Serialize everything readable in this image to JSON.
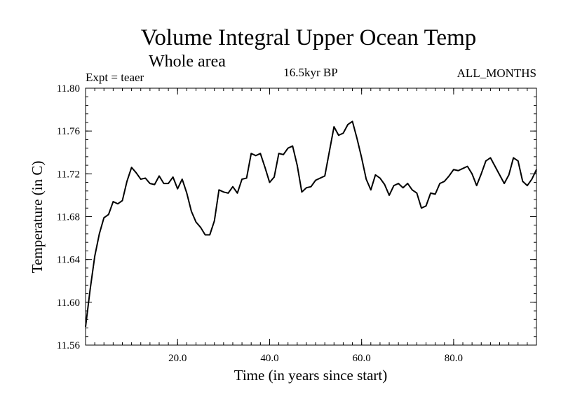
{
  "chart_data": {
    "type": "line",
    "title": "Volume Integral Upper Ocean Temp",
    "subtitle": "Whole area",
    "header_left": "Expt = teaer",
    "header_center": "16.5kyr BP",
    "header_right": "ALL_MONTHS",
    "xlabel": "Time (in years since start)",
    "ylabel": "Temperature (in C)",
    "xlim": [
      0,
      98
    ],
    "ylim": [
      11.56,
      11.8
    ],
    "xticks": [
      20,
      40,
      60,
      80
    ],
    "xtick_labels": [
      "20.0",
      "40.0",
      "60.0",
      "80.0"
    ],
    "yticks": [
      11.56,
      11.6,
      11.64,
      11.68,
      11.72,
      11.76,
      11.8
    ],
    "ytick_labels": [
      "11.56",
      "11.60",
      "11.64",
      "11.68",
      "11.72",
      "11.76",
      "11.80"
    ],
    "x_minor_step": 2,
    "y_minor_step": 0.008,
    "series": [
      {
        "name": "Temperature",
        "x": [
          0,
          1,
          2,
          3,
          4,
          5,
          6,
          7,
          8,
          9,
          10,
          11,
          12,
          13,
          14,
          15,
          16,
          17,
          18,
          19,
          20,
          21,
          22,
          23,
          24,
          25,
          26,
          27,
          28,
          29,
          30,
          31,
          32,
          33,
          34,
          35,
          36,
          37,
          38,
          39,
          40,
          41,
          42,
          43,
          44,
          45,
          46,
          47,
          48,
          49,
          50,
          51,
          52,
          53,
          54,
          55,
          56,
          57,
          58,
          59,
          60,
          61,
          62,
          63,
          64,
          65,
          66,
          67,
          68,
          69,
          70,
          71,
          72,
          73,
          74,
          75,
          76,
          77,
          78,
          79,
          80,
          81,
          82,
          83,
          84,
          85,
          86,
          87,
          88,
          89,
          90,
          91,
          92,
          93,
          94,
          95,
          96,
          97,
          98
        ],
        "values": [
          11.577,
          11.612,
          11.643,
          11.664,
          11.679,
          11.682,
          11.694,
          11.692,
          11.695,
          11.713,
          11.726,
          11.721,
          11.715,
          11.716,
          11.711,
          11.71,
          11.718,
          11.711,
          11.711,
          11.717,
          11.706,
          11.715,
          11.702,
          11.685,
          11.675,
          11.67,
          11.663,
          11.663,
          11.676,
          11.705,
          11.703,
          11.702,
          11.708,
          11.702,
          11.715,
          11.716,
          11.739,
          11.737,
          11.739,
          11.726,
          11.712,
          11.717,
          11.739,
          11.738,
          11.744,
          11.746,
          11.728,
          11.703,
          11.707,
          11.708,
          11.714,
          11.716,
          11.718,
          11.741,
          11.764,
          11.756,
          11.758,
          11.766,
          11.769,
          11.753,
          11.735,
          11.715,
          11.705,
          11.719,
          11.716,
          11.71,
          11.7,
          11.709,
          11.711,
          11.707,
          11.711,
          11.705,
          11.702,
          11.688,
          11.69,
          11.702,
          11.701,
          11.711,
          11.713,
          11.718,
          11.724,
          11.723,
          11.725,
          11.727,
          11.72,
          11.709,
          11.72,
          11.732,
          11.735,
          11.727,
          11.719,
          11.711,
          11.719,
          11.735,
          11.732,
          11.713,
          11.709,
          11.715,
          11.724
        ]
      }
    ]
  }
}
